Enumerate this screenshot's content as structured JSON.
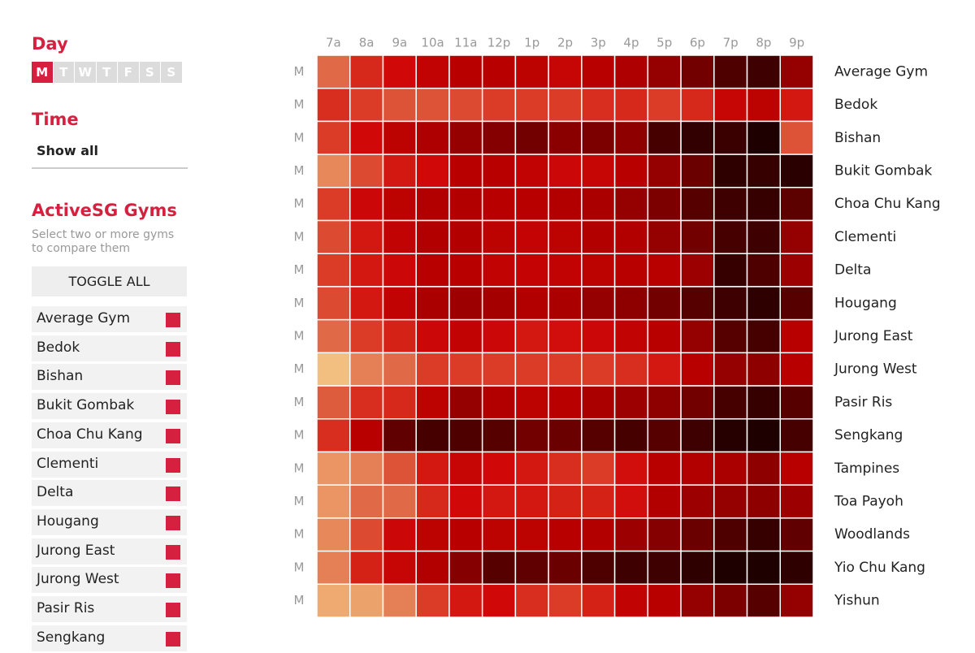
{
  "sidebar": {
    "day_title": "Day",
    "days": [
      "M",
      "T",
      "W",
      "T",
      "F",
      "S",
      "S"
    ],
    "active_day": 0,
    "time_title": "Time",
    "time_option": "Show all",
    "gyms_title": "ActiveSG Gyms",
    "gyms_hint": "Select two or more gyms to compare them",
    "toggle_all": "TOGGLE ALL"
  },
  "chart_data": {
    "type": "heatmap",
    "categories": [
      "7a",
      "8a",
      "9a",
      "10a",
      "11a",
      "12p",
      "1p",
      "2p",
      "3p",
      "4p",
      "5p",
      "6p",
      "7p",
      "8p",
      "9p"
    ],
    "day_labels": [
      "M",
      "M",
      "M",
      "M",
      "M",
      "M",
      "M",
      "M",
      "M",
      "M",
      "M",
      "M",
      "M",
      "M",
      "M",
      "M",
      "M"
    ],
    "zlim": [
      0,
      100
    ],
    "color_scale": [
      "#f6d38e",
      "#eca06a",
      "#e06a48",
      "#d83020",
      "#d00808",
      "#b80000",
      "#8a0000",
      "#500000",
      "#1e0000"
    ],
    "series": [
      {
        "name": "Average Gym",
        "values": [
          25,
          40,
          50,
          58,
          62,
          62,
          60,
          55,
          62,
          65,
          72,
          80,
          88,
          92,
          72
        ]
      },
      {
        "name": "Bedok",
        "values": [
          38,
          35,
          30,
          30,
          32,
          35,
          35,
          35,
          38,
          40,
          35,
          40,
          55,
          60,
          45
        ]
      },
      {
        "name": "Bishan",
        "values": [
          35,
          50,
          60,
          65,
          72,
          76,
          80,
          75,
          78,
          74,
          90,
          95,
          93,
          100,
          30
        ]
      },
      {
        "name": "Bukit Gombak",
        "values": [
          18,
          32,
          45,
          50,
          62,
          62,
          58,
          52,
          55,
          62,
          72,
          82,
          96,
          94,
          97
        ]
      },
      {
        "name": "Choa Chu Kang",
        "values": [
          35,
          52,
          60,
          64,
          64,
          62,
          62,
          64,
          66,
          72,
          78,
          86,
          92,
          94,
          85
        ]
      },
      {
        "name": "Clementi",
        "values": [
          32,
          45,
          58,
          64,
          64,
          60,
          56,
          60,
          64,
          64,
          72,
          80,
          90,
          92,
          72
        ]
      },
      {
        "name": "Delta",
        "values": [
          35,
          45,
          52,
          62,
          62,
          58,
          56,
          58,
          60,
          62,
          62,
          70,
          94,
          88,
          70
        ]
      },
      {
        "name": "Hougang",
        "values": [
          32,
          45,
          58,
          66,
          70,
          68,
          64,
          66,
          72,
          74,
          80,
          86,
          92,
          96,
          86
        ]
      },
      {
        "name": "Jurong East",
        "values": [
          25,
          35,
          42,
          52,
          58,
          52,
          45,
          48,
          52,
          58,
          62,
          72,
          86,
          90,
          62
        ]
      },
      {
        "name": "Jurong West",
        "values": [
          5,
          20,
          25,
          35,
          35,
          35,
          35,
          35,
          35,
          38,
          45,
          62,
          72,
          74,
          62
        ]
      },
      {
        "name": "Pasir Ris",
        "values": [
          28,
          38,
          40,
          60,
          72,
          64,
          60,
          62,
          66,
          70,
          74,
          80,
          90,
          94,
          86
        ]
      },
      {
        "name": "Sengkang",
        "values": [
          38,
          62,
          84,
          90,
          88,
          86,
          80,
          82,
          86,
          90,
          86,
          92,
          98,
          100,
          90
        ]
      },
      {
        "name": "Tampines",
        "values": [
          15,
          20,
          30,
          45,
          55,
          50,
          45,
          38,
          35,
          48,
          62,
          64,
          66,
          74,
          62
        ]
      },
      {
        "name": "Toa Payoh",
        "values": [
          15,
          25,
          25,
          40,
          50,
          45,
          45,
          42,
          42,
          48,
          64,
          70,
          72,
          74,
          70
        ]
      },
      {
        "name": "Woodlands",
        "values": [
          18,
          32,
          52,
          60,
          62,
          60,
          60,
          62,
          64,
          70,
          76,
          82,
          88,
          94,
          84
        ]
      },
      {
        "name": "Yio Chu Kang",
        "values": [
          20,
          42,
          55,
          64,
          76,
          86,
          84,
          82,
          88,
          92,
          92,
          96,
          100,
          100,
          96
        ]
      },
      {
        "name": "Yishun",
        "values": [
          10,
          12,
          20,
          35,
          45,
          50,
          38,
          35,
          42,
          58,
          62,
          72,
          78,
          86,
          72
        ]
      }
    ]
  }
}
